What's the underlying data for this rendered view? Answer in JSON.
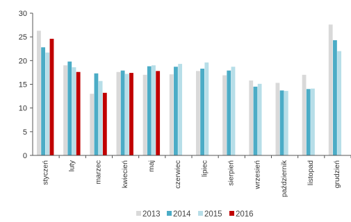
{
  "chart_data": {
    "type": "bar",
    "categories": [
      "styczeń",
      "luty",
      "marzec",
      "kwiecień",
      "maj",
      "czerwiec",
      "lipiec",
      "sierpień",
      "wrzesień",
      "październik",
      "listopad",
      "grudzień"
    ],
    "series": [
      {
        "name": "2013",
        "color": "#d9d9d9",
        "values": [
          26.3,
          19.0,
          13.0,
          17.6,
          17.0,
          17.1,
          17.8,
          16.9,
          15.8,
          15.3,
          17.0,
          27.6
        ]
      },
      {
        "name": "2014",
        "color": "#4bacc6",
        "values": [
          22.8,
          19.8,
          17.3,
          17.9,
          18.8,
          18.7,
          18.3,
          17.9,
          14.5,
          13.7,
          14.0,
          24.3
        ]
      },
      {
        "name": "2015",
        "color": "#b7dee8",
        "values": [
          21.7,
          18.6,
          15.7,
          17.2,
          19.0,
          19.3,
          19.6,
          18.7,
          15.1,
          13.6,
          14.1,
          22.0
        ]
      },
      {
        "name": "2016",
        "color": "#c00000",
        "values": [
          24.6,
          17.6,
          13.2,
          17.4,
          17.8,
          null,
          null,
          null,
          null,
          null,
          null,
          null
        ]
      }
    ],
    "ylim": [
      0,
      30
    ],
    "yticks": [
      0,
      5,
      10,
      15,
      20,
      25,
      30
    ],
    "grid": false,
    "legend_position": "bottom"
  }
}
